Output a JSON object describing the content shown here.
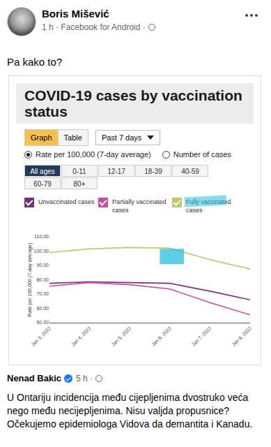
{
  "post": {
    "author": "Boris Mišević",
    "meta": "1 h · Facebook for Android ·",
    "text": "Pa kako to?"
  },
  "widget": {
    "title": "COVID-19 cases by vaccination status",
    "view_buttons": [
      "Graph",
      "Table"
    ],
    "period": "Past 7 days",
    "measures": [
      "Rate per 100,000 (7-day average)",
      "Number of cases"
    ],
    "age_groups": [
      "All ages",
      "0-11",
      "12-17",
      "18-39",
      "40-59",
      "60-79",
      "80+"
    ]
  },
  "chart_data": {
    "type": "line",
    "categories": [
      "Jan 3, 2022",
      "Jan 4, 2022",
      "Jan 5, 2022",
      "Jan 6, 2022",
      "Jan 7, 2022",
      "Jan 8, 2022"
    ],
    "series": [
      {
        "name": "Unvaccinated cases",
        "color": "#7a2f72",
        "values": [
          77.5,
          78.5,
          78,
          77.5,
          72,
          66
        ]
      },
      {
        "name": "Partially vaccinated cases",
        "color": "#cf4c9c",
        "values": [
          75.5,
          78,
          76.5,
          73.5,
          64,
          55.5
        ]
      },
      {
        "name": "Fully vaccinated cases",
        "color": "#c4c46a",
        "values": [
          99,
          101.5,
          102.5,
          102,
          94,
          87.5
        ]
      }
    ],
    "y_label": "Rate per 100,000 (7-day average)",
    "ylim": [
      50,
      110
    ],
    "yticks": [
      {
        "value": 50,
        "label": "50.00"
      },
      {
        "value": 60,
        "label": "60.00"
      },
      {
        "value": 70,
        "label": "70.00"
      },
      {
        "value": 80,
        "label": "80.00"
      },
      {
        "value": 90,
        "label": "90.00"
      },
      {
        "value": 100,
        "label": "100.00"
      },
      {
        "value": 110,
        "label": "110.00"
      }
    ],
    "grid": false
  },
  "comment": {
    "author": "Nenad Bakic",
    "meta": "5 h ·",
    "text": "U Ontariju incidencija među cijepljenima dvostruko veća nego među necijepljenima. Nisu valjda propusnice? Očekujemo epidemiologa Vidova da demantita i Kanadu."
  }
}
